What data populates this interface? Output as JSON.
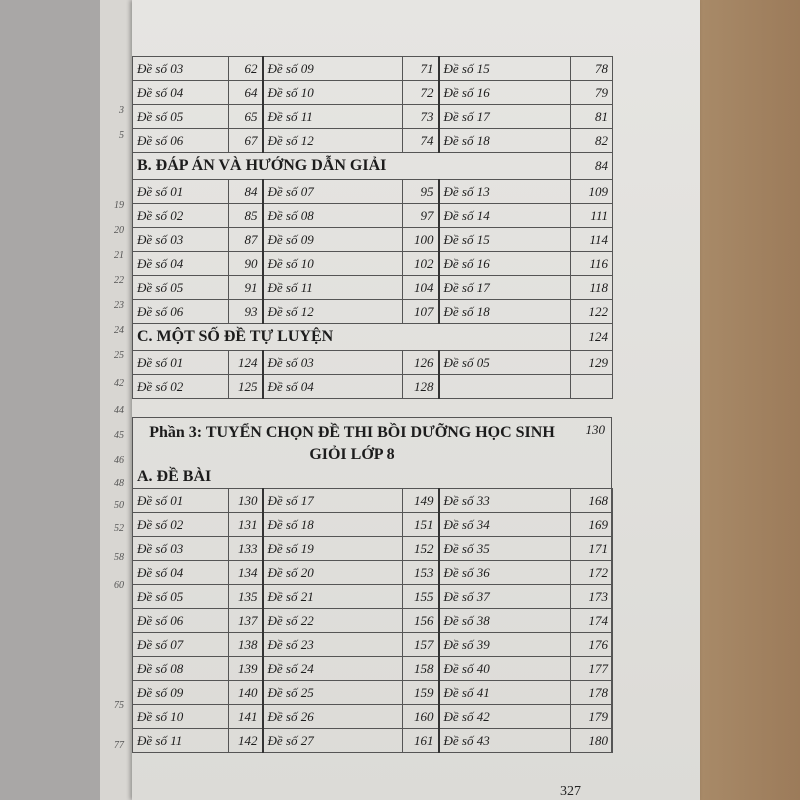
{
  "prev_page_numbers": [
    "3",
    "5",
    "19",
    "20",
    "21",
    "22",
    "23",
    "24",
    "25",
    "42",
    "44",
    "45",
    "46",
    "48",
    "50",
    "52",
    "58",
    "60",
    "75",
    "77"
  ],
  "section_a_continued": {
    "rows": [
      [
        [
          "Đề số 03",
          "62"
        ],
        [
          "Đề số 09",
          "71"
        ],
        [
          "Đề số 15",
          "78"
        ]
      ],
      [
        [
          "Đề số 04",
          "64"
        ],
        [
          "Đề số 10",
          "72"
        ],
        [
          "Đề số 16",
          "79"
        ]
      ],
      [
        [
          "Đề số 05",
          "65"
        ],
        [
          "Đề số 11",
          "73"
        ],
        [
          "Đề số 17",
          "81"
        ]
      ],
      [
        [
          "Đề số 06",
          "67"
        ],
        [
          "Đề số 12",
          "74"
        ],
        [
          "Đề số 18",
          "82"
        ]
      ]
    ]
  },
  "section_b": {
    "title": "B. ĐÁP ÁN VÀ HƯỚNG DẪN GIẢI",
    "page": "84",
    "rows": [
      [
        [
          "Đề số 01",
          "84"
        ],
        [
          "Đề số 07",
          "95"
        ],
        [
          "Đề số 13",
          "109"
        ]
      ],
      [
        [
          "Đề số 02",
          "85"
        ],
        [
          "Đề số 08",
          "97"
        ],
        [
          "Đề số 14",
          "111"
        ]
      ],
      [
        [
          "Đề số 03",
          "87"
        ],
        [
          "Đề số 09",
          "100"
        ],
        [
          "Đề số 15",
          "114"
        ]
      ],
      [
        [
          "Đề số 04",
          "90"
        ],
        [
          "Đề số 10",
          "102"
        ],
        [
          "Đề số 16",
          "116"
        ]
      ],
      [
        [
          "Đề số 05",
          "91"
        ],
        [
          "Đề số 11",
          "104"
        ],
        [
          "Đề số 17",
          "118"
        ]
      ],
      [
        [
          "Đề số 06",
          "93"
        ],
        [
          "Đề số 12",
          "107"
        ],
        [
          "Đề số 18",
          "122"
        ]
      ]
    ]
  },
  "section_c": {
    "title": "C. MỘT SỐ ĐỀ TỰ LUYỆN",
    "page": "124",
    "rows": [
      [
        [
          "Đề số 01",
          "124"
        ],
        [
          "Đề số 03",
          "126"
        ],
        [
          "Đề số 05",
          "129"
        ]
      ],
      [
        [
          "Đề số 02",
          "125"
        ],
        [
          "Đề số 04",
          "128"
        ],
        [
          "",
          ""
        ]
      ]
    ]
  },
  "part3": {
    "title": "Phần 3: TUYỂN CHỌN ĐỀ THI BỒI DƯỠNG HỌC SINH GIỎI LỚP 8",
    "page": "130",
    "subsection": "A. ĐỀ BÀI",
    "rows": [
      [
        [
          "Đề số 01",
          "130"
        ],
        [
          "Đề số 17",
          "149"
        ],
        [
          "Đề số 33",
          "168"
        ]
      ],
      [
        [
          "Đề số 02",
          "131"
        ],
        [
          "Đề số 18",
          "151"
        ],
        [
          "Đề số 34",
          "169"
        ]
      ],
      [
        [
          "Đề số 03",
          "133"
        ],
        [
          "Đề số 19",
          "152"
        ],
        [
          "Đề số 35",
          "171"
        ]
      ],
      [
        [
          "Đề số 04",
          "134"
        ],
        [
          "Đề số 20",
          "153"
        ],
        [
          "Đề số 36",
          "172"
        ]
      ],
      [
        [
          "Đề số 05",
          "135"
        ],
        [
          "Đề số 21",
          "155"
        ],
        [
          "Đề số 37",
          "173"
        ]
      ],
      [
        [
          "Đề số 06",
          "137"
        ],
        [
          "Đề số 22",
          "156"
        ],
        [
          "Đề số 38",
          "174"
        ]
      ],
      [
        [
          "Đề số 07",
          "138"
        ],
        [
          "Đề số 23",
          "157"
        ],
        [
          "Đề số 39",
          "176"
        ]
      ],
      [
        [
          "Đề số 08",
          "139"
        ],
        [
          "Đề số 24",
          "158"
        ],
        [
          "Đề số 40",
          "177"
        ]
      ],
      [
        [
          "Đề số 09",
          "140"
        ],
        [
          "Đề số 25",
          "159"
        ],
        [
          "Đề số 41",
          "178"
        ]
      ],
      [
        [
          "Đề số 10",
          "141"
        ],
        [
          "Đề số 26",
          "160"
        ],
        [
          "Đề số 42",
          "179"
        ]
      ],
      [
        [
          "Đề số 11",
          "142"
        ],
        [
          "Đề số 27",
          "161"
        ],
        [
          "Đề số 43",
          "180"
        ]
      ]
    ]
  },
  "page_number": "327"
}
